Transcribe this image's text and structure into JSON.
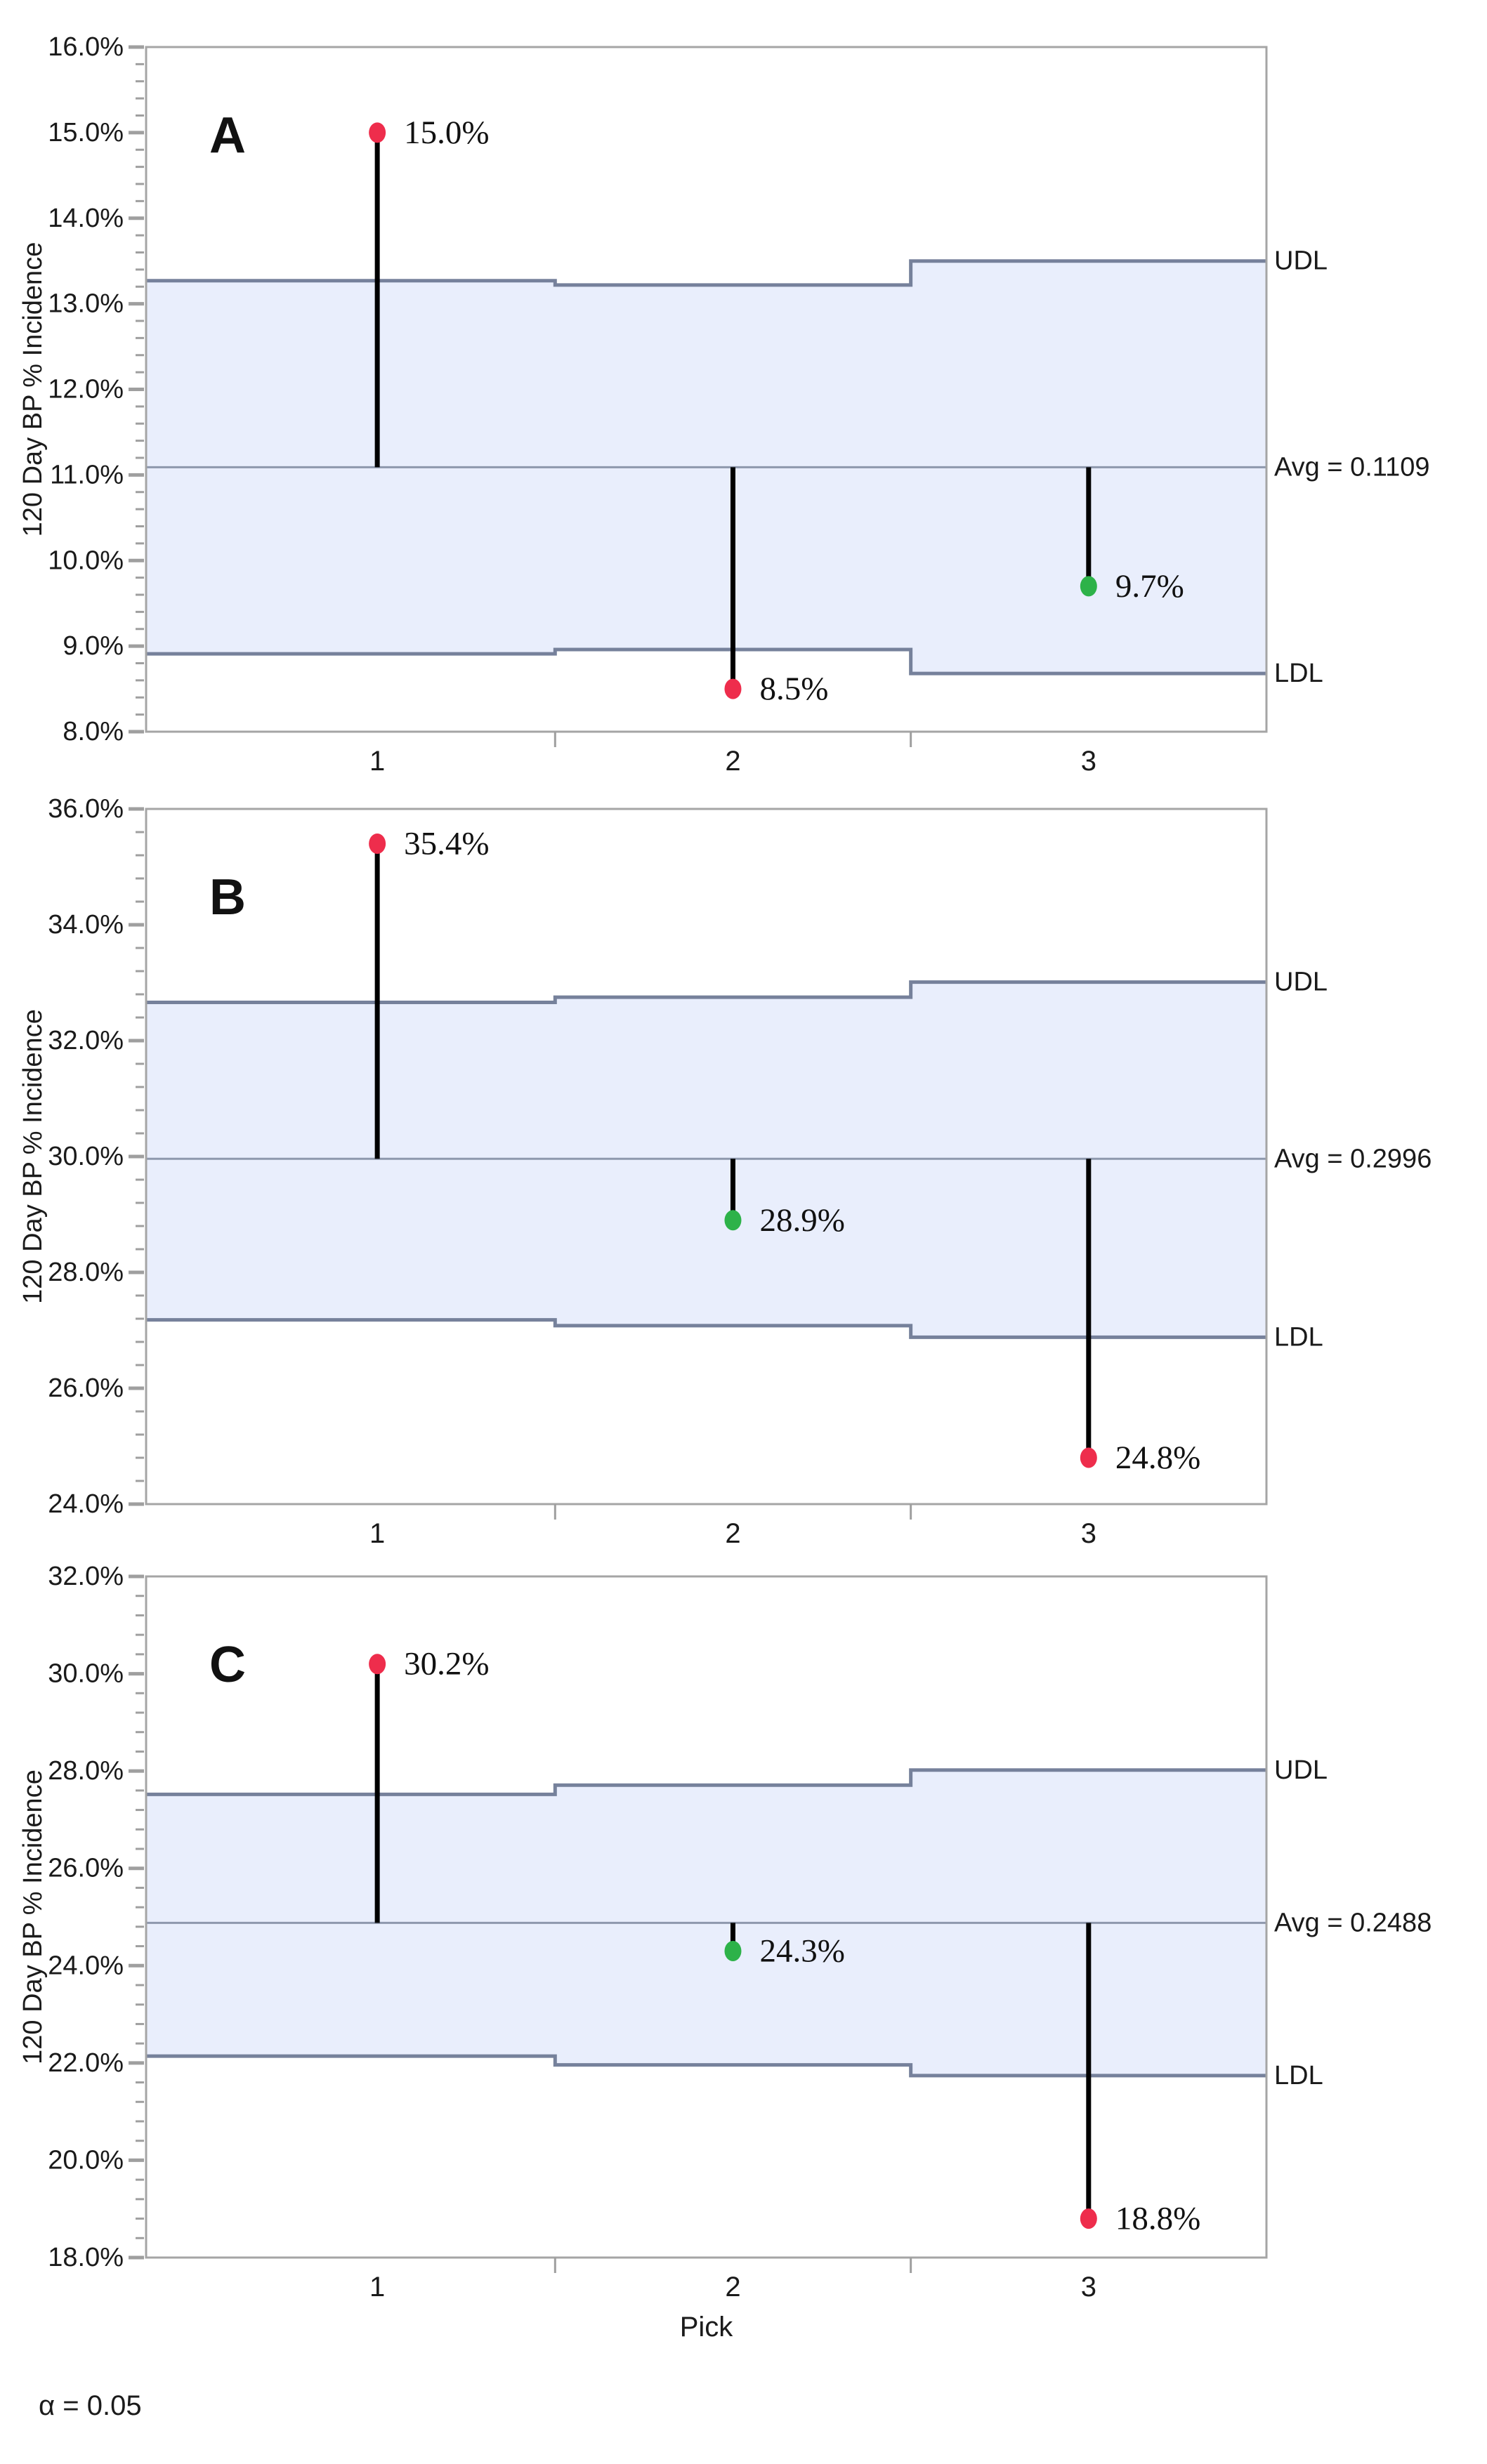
{
  "figure": {
    "ylabel": "120 Day BP % Incidence",
    "xlabel": "Pick",
    "alpha_note": "α = 0.05",
    "limit_labels": {
      "udl": "UDL",
      "ldl": "LDL"
    },
    "colors": {
      "band_fill": "#E9EEFC",
      "limit_line": "#76819B",
      "avg_line": "#8E98AD",
      "frame": "#A5A5A5",
      "tick": "#9F9F9F",
      "needle": "#000000",
      "text": "#1A1A1A",
      "out_of_limits_point": "#EE2D4C",
      "within_limits_point": "#2DB249"
    }
  },
  "chart_data": [
    {
      "type": "anom-needle",
      "panel_letter": "A",
      "categories": [
        "1",
        "2",
        "3"
      ],
      "values_pct": [
        15.0,
        8.5,
        9.7
      ],
      "value_labels": [
        "15.0%",
        "8.5%",
        "9.7%"
      ],
      "point_status": [
        "above",
        "below",
        "within"
      ],
      "avg": 0.1109,
      "avg_pct": 11.09,
      "avg_label": "Avg = 0.1109",
      "udl_pct": [
        13.27,
        13.22,
        13.5
      ],
      "ldl_pct": [
        8.91,
        8.96,
        8.68
      ],
      "ylim_pct": [
        8.0,
        16.0
      ],
      "ytick_major_pct": 1.0,
      "ytick_minor_pct": 0.2,
      "ylabel": "120 Day BP % Incidence",
      "xlabel": "Pick",
      "legend": "none",
      "grid": "off"
    },
    {
      "type": "anom-needle",
      "panel_letter": "B",
      "categories": [
        "1",
        "2",
        "3"
      ],
      "values_pct": [
        35.4,
        28.9,
        24.8
      ],
      "value_labels": [
        "35.4%",
        "28.9%",
        "24.8%"
      ],
      "point_status": [
        "above",
        "within",
        "below"
      ],
      "avg": 0.2996,
      "avg_pct": 29.96,
      "avg_label": "Avg = 0.2996",
      "udl_pct": [
        32.66,
        32.75,
        33.01
      ],
      "ldl_pct": [
        27.18,
        27.08,
        26.88
      ],
      "ylim_pct": [
        24.0,
        36.0
      ],
      "ytick_major_pct": 2.0,
      "ytick_minor_pct": 0.4,
      "ylabel": "120 Day BP % Incidence",
      "xlabel": "Pick",
      "legend": "none",
      "grid": "off"
    },
    {
      "type": "anom-needle",
      "panel_letter": "C",
      "categories": [
        "1",
        "2",
        "3"
      ],
      "values_pct": [
        30.2,
        24.3,
        18.8
      ],
      "value_labels": [
        "30.2%",
        "24.3%",
        "18.8%"
      ],
      "point_status": [
        "above",
        "within",
        "below"
      ],
      "avg": 0.2488,
      "avg_pct": 24.88,
      "avg_label": "Avg = 0.2488",
      "udl_pct": [
        27.52,
        27.71,
        28.02
      ],
      "ldl_pct": [
        22.14,
        21.96,
        21.74
      ],
      "ylim_pct": [
        18.0,
        32.0
      ],
      "ytick_major_pct": 2.0,
      "ytick_minor_pct": 0.4,
      "ylabel": "120 Day BP % Incidence",
      "xlabel": "Pick",
      "legend": "none",
      "grid": "off"
    }
  ]
}
